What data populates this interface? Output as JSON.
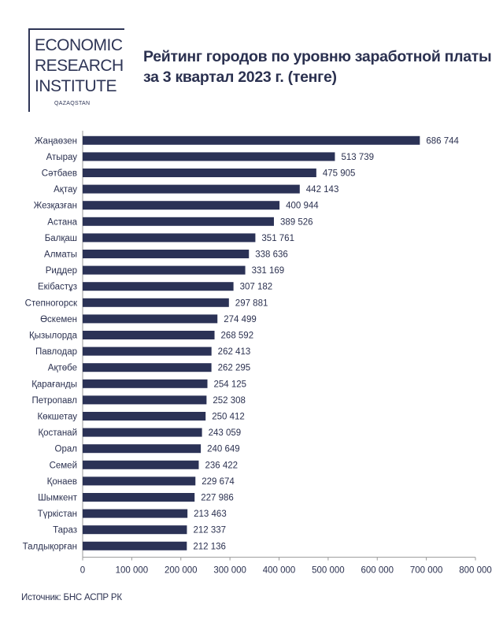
{
  "logo": {
    "line1": "ECONOMIC",
    "line2": "RESEARCH",
    "line3": "INSTITUTE",
    "sub": "QAZAQSTAN"
  },
  "title": {
    "line1": "Рейтинг городов по уровню заработной платы",
    "line2": "за 3 квартал 2023 г. (тенге)"
  },
  "source": "Источник: БНС АСПР РК",
  "colors": {
    "bar": "#2b3256",
    "text": "#2b3150",
    "axis": "#9a9a9a"
  },
  "chart_data": {
    "type": "bar",
    "orientation": "horizontal",
    "title": "Рейтинг городов по уровню заработной платы за 3 квартал 2023 г. (тенге)",
    "categories": [
      "Жаңаөзен",
      "Атырау",
      "Сәтбаев",
      "Ақтау",
      "Жезқазған",
      "Астана",
      "Балқаш",
      "Алматы",
      "Риддер",
      "Екібастұз",
      "Степногорск",
      "Өскемен",
      "Қызылорда",
      "Павлодар",
      "Ақтөбе",
      "Қарағанды",
      "Петропавл",
      "Көкшетау",
      "Қостанай",
      "Орал",
      "Семей",
      "Қонаев",
      "Шымкент",
      "Түркістан",
      "Тараз",
      "Талдықорған"
    ],
    "values": [
      686744,
      513739,
      475905,
      442143,
      400944,
      389526,
      351761,
      338636,
      331169,
      307182,
      297881,
      274499,
      268592,
      262413,
      262295,
      254125,
      252308,
      250412,
      243059,
      240649,
      236422,
      229674,
      227986,
      213463,
      212337,
      212136
    ],
    "value_labels": [
      "686 744",
      "513 739",
      "475 905",
      "442 143",
      "400 944",
      "389 526",
      "351 761",
      "338 636",
      "331 169",
      "307 182",
      "297 881",
      "274 499",
      "268 592",
      "262 413",
      "262 295",
      "254 125",
      "252 308",
      "250 412",
      "243 059",
      "240 649",
      "236 422",
      "229 674",
      "227 986",
      "213 463",
      "212 337",
      "212 136"
    ],
    "xlim": [
      0,
      800000
    ],
    "xticks": [
      0,
      100000,
      200000,
      300000,
      400000,
      500000,
      600000,
      700000,
      800000
    ],
    "xtick_labels": [
      "0",
      "100 000",
      "200 000",
      "300 000",
      "400 000",
      "500 000",
      "600 000",
      "700 000",
      "800 000"
    ],
    "grid": false,
    "legend": "none"
  }
}
